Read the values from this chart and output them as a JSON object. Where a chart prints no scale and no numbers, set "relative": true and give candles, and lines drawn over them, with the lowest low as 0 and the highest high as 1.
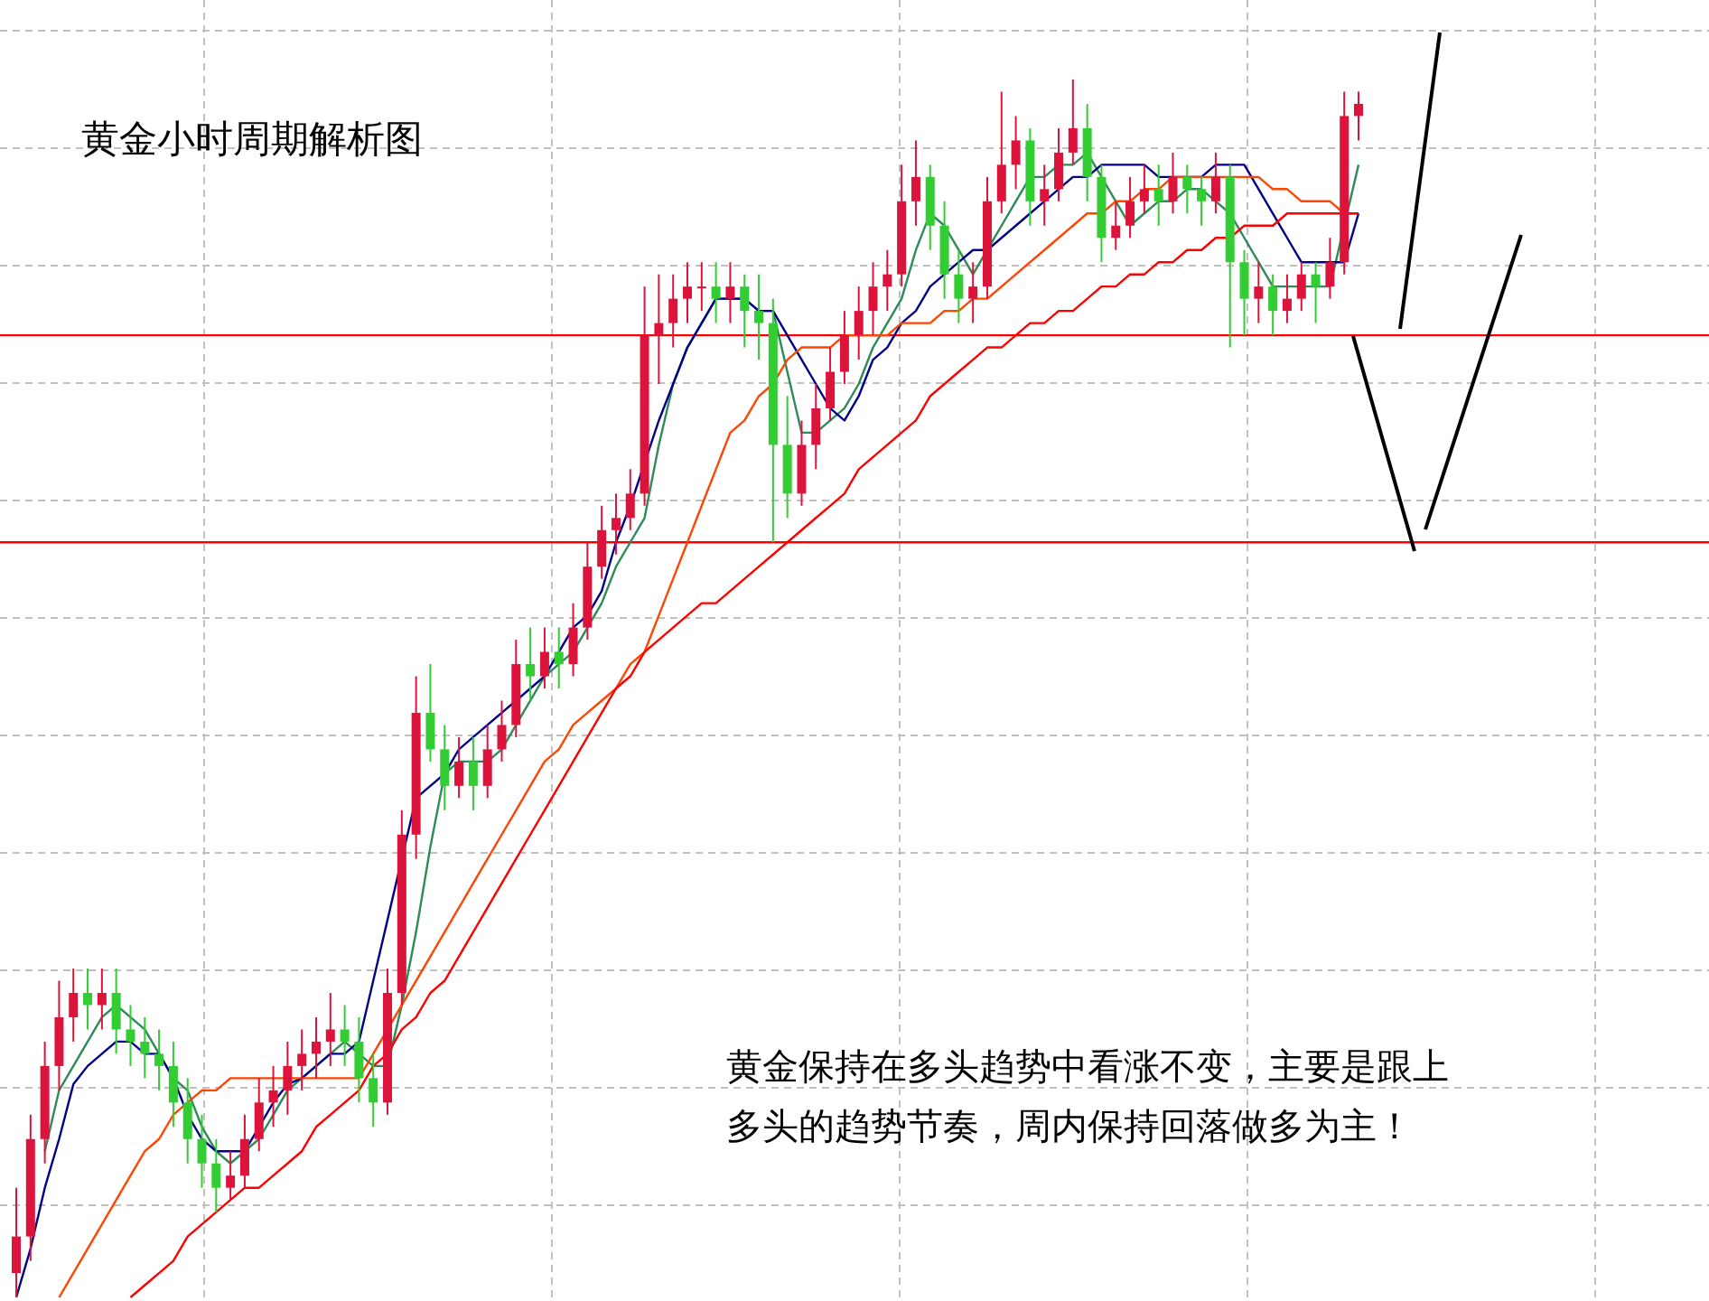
{
  "chart_data": {
    "type": "candlestick",
    "title": "黄金小时周期解析图",
    "relative": true,
    "grid": true,
    "annotations": [
      "黄金保持在多头趋势中看涨不变，主要是跟上多头的趋势节奏，周内保持回落做多为主！"
    ],
    "categories": [
      null,
      null,
      null,
      null,
      null,
      null,
      null,
      null,
      null,
      null,
      null,
      null,
      null,
      null,
      null,
      null,
      null,
      null,
      null,
      null,
      null,
      null,
      null,
      null,
      null,
      null,
      null,
      null,
      null,
      null,
      null,
      null,
      null,
      null,
      null,
      null,
      null,
      null,
      null,
      null,
      null,
      null,
      null,
      null,
      null,
      null,
      null,
      null,
      null,
      null,
      null,
      null,
      null,
      null,
      null,
      null,
      null,
      null,
      null,
      null,
      null,
      null,
      null,
      null,
      null,
      null,
      null,
      null,
      null,
      null,
      null,
      null,
      null,
      null,
      null,
      null,
      null,
      null,
      null,
      null,
      null,
      null,
      null,
      null,
      null,
      null,
      null,
      null,
      null,
      null,
      null,
      null,
      null,
      null,
      null
    ],
    "ohlc": [
      [
        0.02,
        0.09,
        0.0,
        0.05
      ],
      [
        0.05,
        0.15,
        0.03,
        0.13
      ],
      [
        0.13,
        0.21,
        0.11,
        0.19
      ],
      [
        0.19,
        0.26,
        0.17,
        0.23
      ],
      [
        0.23,
        0.27,
        0.21,
        0.25
      ],
      [
        0.25,
        0.27,
        0.22,
        0.24
      ],
      [
        0.24,
        0.27,
        0.22,
        0.25
      ],
      [
        0.25,
        0.27,
        0.2,
        0.22
      ],
      [
        0.22,
        0.24,
        0.19,
        0.21
      ],
      [
        0.21,
        0.23,
        0.18,
        0.2
      ],
      [
        0.2,
        0.22,
        0.17,
        0.19
      ],
      [
        0.19,
        0.21,
        0.14,
        0.16
      ],
      [
        0.16,
        0.18,
        0.11,
        0.13
      ],
      [
        0.13,
        0.15,
        0.09,
        0.11
      ],
      [
        0.11,
        0.13,
        0.07,
        0.09
      ],
      [
        0.09,
        0.12,
        0.08,
        0.1
      ],
      [
        0.1,
        0.15,
        0.09,
        0.13
      ],
      [
        0.13,
        0.18,
        0.12,
        0.16
      ],
      [
        0.16,
        0.19,
        0.14,
        0.17
      ],
      [
        0.17,
        0.21,
        0.15,
        0.19
      ],
      [
        0.19,
        0.22,
        0.17,
        0.2
      ],
      [
        0.2,
        0.23,
        0.18,
        0.21
      ],
      [
        0.21,
        0.25,
        0.19,
        0.22
      ],
      [
        0.22,
        0.24,
        0.19,
        0.21
      ],
      [
        0.21,
        0.23,
        0.16,
        0.18
      ],
      [
        0.18,
        0.2,
        0.14,
        0.16
      ],
      [
        0.16,
        0.27,
        0.15,
        0.25
      ],
      [
        0.25,
        0.4,
        0.24,
        0.38
      ],
      [
        0.38,
        0.51,
        0.36,
        0.48
      ],
      [
        0.48,
        0.52,
        0.44,
        0.45
      ],
      [
        0.45,
        0.47,
        0.4,
        0.42
      ],
      [
        0.42,
        0.46,
        0.41,
        0.44
      ],
      [
        0.44,
        0.46,
        0.4,
        0.42
      ],
      [
        0.42,
        0.47,
        0.41,
        0.45
      ],
      [
        0.45,
        0.49,
        0.44,
        0.47
      ],
      [
        0.47,
        0.54,
        0.46,
        0.52
      ],
      [
        0.52,
        0.55,
        0.49,
        0.51
      ],
      [
        0.51,
        0.55,
        0.5,
        0.53
      ],
      [
        0.53,
        0.55,
        0.5,
        0.52
      ],
      [
        0.52,
        0.57,
        0.51,
        0.55
      ],
      [
        0.55,
        0.62,
        0.54,
        0.6
      ],
      [
        0.6,
        0.65,
        0.59,
        0.63
      ],
      [
        0.63,
        0.66,
        0.61,
        0.64
      ],
      [
        0.64,
        0.68,
        0.63,
        0.66
      ],
      [
        0.66,
        0.83,
        0.65,
        0.79
      ],
      [
        0.79,
        0.84,
        0.75,
        0.8
      ],
      [
        0.8,
        0.84,
        0.78,
        0.82
      ],
      [
        0.82,
        0.85,
        0.8,
        0.83
      ],
      [
        0.83,
        0.85,
        0.81,
        0.83
      ],
      [
        0.83,
        0.85,
        0.8,
        0.82
      ],
      [
        0.82,
        0.85,
        0.8,
        0.83
      ],
      [
        0.83,
        0.84,
        0.78,
        0.81
      ],
      [
        0.81,
        0.84,
        0.77,
        0.8
      ],
      [
        0.8,
        0.82,
        0.62,
        0.7
      ],
      [
        0.7,
        0.74,
        0.64,
        0.66
      ],
      [
        0.66,
        0.72,
        0.65,
        0.7
      ],
      [
        0.7,
        0.75,
        0.68,
        0.73
      ],
      [
        0.73,
        0.78,
        0.72,
        0.76
      ],
      [
        0.76,
        0.81,
        0.75,
        0.79
      ],
      [
        0.79,
        0.83,
        0.77,
        0.81
      ],
      [
        0.81,
        0.85,
        0.79,
        0.83
      ],
      [
        0.83,
        0.86,
        0.81,
        0.84
      ],
      [
        0.84,
        0.93,
        0.83,
        0.9
      ],
      [
        0.9,
        0.95,
        0.88,
        0.92
      ],
      [
        0.92,
        0.93,
        0.86,
        0.88
      ],
      [
        0.88,
        0.9,
        0.82,
        0.84
      ],
      [
        0.84,
        0.86,
        0.8,
        0.82
      ],
      [
        0.82,
        0.85,
        0.8,
        0.83
      ],
      [
        0.83,
        0.92,
        0.82,
        0.9
      ],
      [
        0.9,
        0.99,
        0.89,
        0.93
      ],
      [
        0.93,
        0.97,
        0.91,
        0.95
      ],
      [
        0.95,
        0.96,
        0.88,
        0.9
      ],
      [
        0.9,
        0.93,
        0.88,
        0.91
      ],
      [
        0.91,
        0.96,
        0.9,
        0.94
      ],
      [
        0.94,
        1.0,
        0.93,
        0.96
      ],
      [
        0.96,
        0.98,
        0.9,
        0.92
      ],
      [
        0.92,
        0.93,
        0.85,
        0.87
      ],
      [
        0.87,
        0.9,
        0.86,
        0.88
      ],
      [
        0.88,
        0.92,
        0.87,
        0.9
      ],
      [
        0.9,
        0.93,
        0.89,
        0.91
      ],
      [
        0.91,
        0.93,
        0.88,
        0.9
      ],
      [
        0.9,
        0.94,
        0.89,
        0.92
      ],
      [
        0.92,
        0.93,
        0.89,
        0.91
      ],
      [
        0.91,
        0.92,
        0.88,
        0.9
      ],
      [
        0.9,
        0.94,
        0.89,
        0.92
      ],
      [
        0.92,
        0.93,
        0.78,
        0.85
      ],
      [
        0.85,
        0.86,
        0.79,
        0.82
      ],
      [
        0.82,
        0.85,
        0.8,
        0.83
      ],
      [
        0.83,
        0.84,
        0.79,
        0.81
      ],
      [
        0.81,
        0.84,
        0.8,
        0.82
      ],
      [
        0.82,
        0.85,
        0.81,
        0.84
      ],
      [
        0.84,
        0.85,
        0.8,
        0.83
      ],
      [
        0.83,
        0.87,
        0.82,
        0.85
      ],
      [
        0.85,
        0.99,
        0.84,
        0.97
      ],
      [
        0.97,
        0.99,
        0.95,
        0.98
      ]
    ],
    "colors": [
      "#dc143c",
      "#dc143c",
      "#dc143c",
      "#dc143c",
      "#dc143c",
      "#32cd32",
      "#dc143c",
      "#32cd32",
      "#32cd32",
      "#32cd32",
      "#32cd32",
      "#32cd32",
      "#32cd32",
      "#32cd32",
      "#32cd32",
      "#dc143c",
      "#dc143c",
      "#dc143c",
      "#dc143c",
      "#dc143c",
      "#dc143c",
      "#dc143c",
      "#dc143c",
      "#32cd32",
      "#32cd32",
      "#32cd32",
      "#dc143c",
      "#dc143c",
      "#dc143c",
      "#32cd32",
      "#32cd32",
      "#dc143c",
      "#32cd32",
      "#dc143c",
      "#dc143c",
      "#dc143c",
      "#32cd32",
      "#dc143c",
      "#32cd32",
      "#dc143c",
      "#dc143c",
      "#dc143c",
      "#dc143c",
      "#dc143c",
      "#dc143c",
      "#dc143c",
      "#dc143c",
      "#dc143c",
      "#dc143c",
      "#32cd32",
      "#dc143c",
      "#32cd32",
      "#32cd32",
      "#32cd32",
      "#32cd32",
      "#dc143c",
      "#dc143c",
      "#dc143c",
      "#dc143c",
      "#dc143c",
      "#dc143c",
      "#dc143c",
      "#dc143c",
      "#dc143c",
      "#32cd32",
      "#32cd32",
      "#32cd32",
      "#dc143c",
      "#dc143c",
      "#dc143c",
      "#dc143c",
      "#32cd32",
      "#dc143c",
      "#dc143c",
      "#dc143c",
      "#32cd32",
      "#32cd32",
      "#dc143c",
      "#dc143c",
      "#dc143c",
      "#32cd32",
      "#dc143c",
      "#32cd32",
      "#32cd32",
      "#dc143c",
      "#32cd32",
      "#32cd32",
      "#dc143c",
      "#32cd32",
      "#dc143c",
      "#dc143c",
      "#32cd32",
      "#dc143c",
      "#dc143c",
      "#dc143c"
    ],
    "series": [
      {
        "type": "line",
        "color": "#2e8b57",
        "values": [
          null,
          null,
          0.12,
          0.17,
          0.19,
          0.21,
          0.23,
          0.24,
          0.23,
          0.22,
          0.2,
          0.18,
          0.17,
          0.14,
          0.12,
          0.11,
          0.12,
          0.13,
          0.15,
          0.17,
          0.18,
          0.19,
          0.2,
          0.21,
          0.2,
          0.19,
          0.19,
          0.24,
          0.3,
          0.37,
          0.43,
          0.44,
          0.44,
          0.44,
          0.45,
          0.47,
          0.49,
          0.51,
          0.52,
          0.53,
          0.55,
          0.57,
          0.6,
          0.62,
          0.64,
          0.7,
          0.75,
          0.78,
          0.8,
          0.82,
          0.82,
          0.82,
          0.81,
          0.81,
          0.76,
          0.71,
          0.71,
          0.72,
          0.73,
          0.75,
          0.78,
          0.8,
          0.82,
          0.86,
          0.89,
          0.88,
          0.86,
          0.84,
          0.86,
          0.88,
          0.9,
          0.92,
          0.92,
          0.93,
          0.93,
          0.94,
          0.92,
          0.9,
          0.88,
          0.89,
          0.9,
          0.9,
          0.91,
          0.91,
          0.9,
          0.89,
          0.87,
          0.85,
          0.83,
          0.83,
          0.83,
          0.83,
          0.83,
          null,
          0.93
        ]
      },
      {
        "type": "line",
        "color": "#00008b",
        "values": [
          0.0,
          0.04,
          0.09,
          0.13,
          0.175,
          0.19,
          0.2,
          0.21,
          0.21,
          0.2,
          0.2,
          0.18,
          0.15,
          0.13,
          0.12,
          0.12,
          0.12,
          0.14,
          0.16,
          0.175,
          0.18,
          0.19,
          0.2,
          0.2,
          0.21,
          0.26,
          0.31,
          null,
          0.41,
          0.42,
          0.43,
          0.45,
          0.46,
          0.47,
          0.48,
          0.49,
          0.5,
          0.51,
          0.53,
          0.55,
          0.56,
          0.58,
          0.62,
          0.65,
          null,
          0.72,
          0.75,
          0.78,
          0.8,
          0.82,
          0.82,
          0.82,
          0.81,
          0.81,
          0.79,
          0.77,
          0.75,
          0.73,
          0.72,
          0.74,
          0.77,
          0.78,
          0.8,
          0.81,
          0.83,
          0.84,
          0.85,
          0.86,
          0.86,
          0.87,
          0.88,
          0.89,
          0.9,
          0.91,
          0.92,
          0.92,
          0.93,
          0.93,
          0.93,
          0.93,
          0.92,
          0.92,
          0.92,
          0.92,
          0.93,
          0.93,
          0.93,
          0.91,
          0.89,
          0.87,
          0.85,
          0.85,
          0.85,
          0.85,
          0.89
        ]
      },
      {
        "type": "line",
        "color": "#ff4500",
        "values": [
          null,
          null,
          null,
          0.0,
          0.02,
          0.04,
          0.06,
          0.08,
          0.1,
          0.12,
          0.13,
          0.15,
          0.16,
          0.17,
          0.17,
          0.18,
          0.18,
          0.18,
          0.18,
          0.18,
          0.18,
          0.18,
          0.18,
          0.18,
          0.18,
          0.2,
          0.22,
          0.24,
          0.26,
          0.28,
          0.3,
          0.32,
          0.34,
          0.36,
          0.38,
          0.4,
          0.42,
          0.44,
          0.45,
          0.47,
          0.48,
          0.49,
          0.5,
          0.52,
          0.53,
          0.56,
          0.59,
          0.62,
          0.65,
          0.68,
          0.71,
          0.72,
          0.74,
          0.75,
          0.77,
          0.78,
          0.78,
          0.78,
          0.79,
          0.79,
          0.79,
          0.79,
          0.8,
          0.8,
          0.8,
          0.81,
          0.81,
          0.82,
          0.82,
          0.83,
          0.84,
          0.85,
          0.86,
          0.87,
          0.88,
          0.89,
          0.89,
          0.9,
          0.9,
          0.91,
          0.91,
          0.92,
          0.92,
          0.92,
          0.92,
          0.92,
          0.92,
          0.92,
          0.91,
          0.91,
          0.9,
          0.9,
          0.9,
          0.89,
          0.89
        ]
      },
      {
        "type": "line",
        "color": "#ff0000",
        "values": [
          null,
          null,
          null,
          null,
          null,
          null,
          null,
          null,
          0.0,
          0.01,
          0.02,
          0.03,
          0.05,
          0.06,
          0.07,
          0.08,
          0.09,
          0.09,
          0.1,
          0.11,
          0.12,
          0.14,
          0.15,
          0.16,
          0.17,
          0.19,
          0.2,
          0.22,
          0.23,
          0.25,
          0.26,
          0.28,
          0.3,
          0.32,
          0.34,
          0.36,
          0.38,
          0.4,
          0.42,
          0.44,
          0.46,
          0.48,
          0.5,
          0.51,
          0.53,
          0.54,
          0.55,
          0.56,
          0.57,
          0.57,
          0.58,
          0.59,
          0.6,
          0.61,
          0.62,
          0.63,
          0.64,
          0.65,
          0.66,
          0.68,
          0.69,
          0.7,
          0.71,
          0.72,
          0.74,
          0.75,
          0.76,
          0.77,
          0.78,
          0.78,
          0.79,
          0.8,
          0.8,
          0.81,
          0.81,
          0.82,
          0.83,
          0.83,
          0.84,
          0.84,
          0.85,
          0.85,
          0.86,
          0.86,
          0.87,
          0.87,
          0.88,
          0.88,
          0.88,
          0.89,
          0.89,
          0.89,
          0.89,
          0.89,
          0.89
        ]
      }
    ],
    "ref_lines": [
      {
        "axis": "y",
        "value": 0.79,
        "color": "#ff0000"
      },
      {
        "axis": "y",
        "value": 0.62,
        "color": "#ff0000"
      }
    ]
  }
}
